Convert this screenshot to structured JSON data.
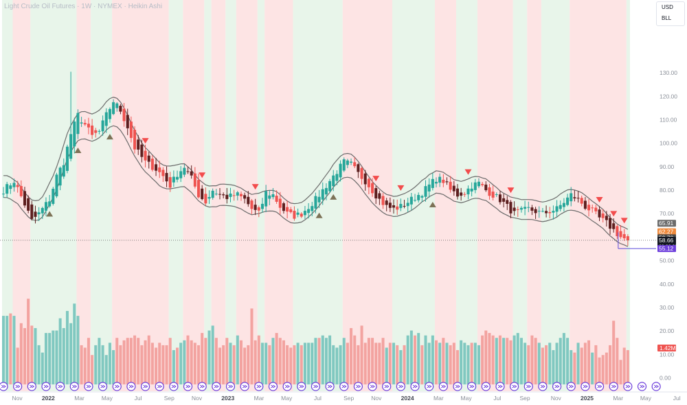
{
  "header": {
    "title": "Light Crude Oil Futures · 1W · NYMEX · Heikin Ashi"
  },
  "units": {
    "currency": "USD",
    "unit": "BLL"
  },
  "colors": {
    "up": "#26a69a",
    "down": "#ef5350",
    "dark_down": "#5d1f1f",
    "up_volume": "#80c8c0",
    "down_volume": "#f3a3a0",
    "band": "#6b6b6b",
    "bg_up": "#e8f5ea",
    "bg_down": "#fde4e4",
    "marker_up": "#7d7257",
    "marker_down": "#f24c4c",
    "line_purple": "#5b4bdb"
  },
  "price_labels": [
    {
      "text": "65.91",
      "value": 65.91,
      "bg": "#6b6b6b",
      "fg": "#ffffff"
    },
    {
      "text": "62.27",
      "value": 62.27,
      "bg": "#ef8a3c",
      "fg": "#ffffff"
    },
    {
      "text": "59.70",
      "value": 59.7,
      "bg": "#4a4a4a",
      "fg": "#ffffff"
    },
    {
      "text": "58.66",
      "value": 58.66,
      "bg": "#131722",
      "fg": "#ffffff",
      "sub": "09:00:09"
    },
    {
      "text": "55.12",
      "value": 55.12,
      "bg": "#6c3ddb",
      "fg": "#ffffff"
    }
  ],
  "volume_label": {
    "text": "1.42M",
    "bg": "#ef5350",
    "fg": "#ffffff"
  },
  "chart_data": {
    "type": "candlestick",
    "interval": "1W",
    "price_axis": {
      "ylim": [
        -2.8,
        140.6
      ],
      "ticks": [
        0,
        10,
        20,
        30,
        40,
        50,
        60,
        70,
        80,
        90,
        100,
        110,
        120,
        130
      ]
    },
    "price_tick_labels": [
      "0.00",
      "10.00",
      "20.00",
      "30.00",
      "40.00",
      "50.00",
      "60.00",
      "70.00",
      "80.00",
      "90.00",
      "100.00",
      "110.00",
      "120.00",
      "130.00"
    ],
    "x_axis": {
      "labels": [
        "Nov",
        "2022",
        "Mar",
        "May",
        "Jul",
        "Sep",
        "Nov",
        "2023",
        "Mar",
        "May",
        "Jul",
        "Sep",
        "Nov",
        "2024",
        "Mar",
        "May",
        "Jul",
        "Sep",
        "Nov",
        "2025",
        "Mar",
        "May",
        "Jul"
      ],
      "bold": [
        "2022",
        "2023",
        "2024",
        "2025"
      ]
    },
    "x_range_weeks": [
      0,
      183
    ],
    "last_candle_week": 176,
    "current_price": 58.66,
    "anchors": [
      [
        0,
        80
      ],
      [
        3,
        84
      ],
      [
        6,
        74
      ],
      [
        8,
        67
      ],
      [
        10,
        70
      ],
      [
        13,
        76
      ],
      [
        15,
        86
      ],
      [
        17,
        92
      ],
      [
        19,
        104
      ],
      [
        21,
        112
      ],
      [
        23,
        108
      ],
      [
        25,
        103
      ],
      [
        27,
        105
      ],
      [
        29,
        112
      ],
      [
        31,
        118
      ],
      [
        33,
        114
      ],
      [
        35,
        107
      ],
      [
        37,
        98
      ],
      [
        40,
        92
      ],
      [
        43,
        89
      ],
      [
        45,
        86
      ],
      [
        47,
        82
      ],
      [
        49,
        87
      ],
      [
        51,
        90
      ],
      [
        53,
        85
      ],
      [
        55,
        78
      ],
      [
        57,
        75
      ],
      [
        59,
        80
      ],
      [
        61,
        78
      ],
      [
        63,
        77
      ],
      [
        66,
        78
      ],
      [
        68,
        76
      ],
      [
        70,
        72
      ],
      [
        72,
        70
      ],
      [
        74,
        79
      ],
      [
        76,
        78
      ],
      [
        78,
        73
      ],
      [
        80,
        70
      ],
      [
        82,
        69
      ],
      [
        84,
        70
      ],
      [
        86,
        73
      ],
      [
        88,
        76
      ],
      [
        90,
        80
      ],
      [
        92,
        84
      ],
      [
        94,
        88
      ],
      [
        96,
        92
      ],
      [
        98,
        91
      ],
      [
        100,
        87
      ],
      [
        102,
        84
      ],
      [
        104,
        80
      ],
      [
        106,
        76
      ],
      [
        108,
        73
      ],
      [
        110,
        72
      ],
      [
        112,
        73
      ],
      [
        114,
        75
      ],
      [
        116,
        77
      ],
      [
        118,
        79
      ],
      [
        120,
        82
      ],
      [
        122,
        85
      ],
      [
        124,
        84
      ],
      [
        126,
        80
      ],
      [
        128,
        78
      ],
      [
        130,
        79
      ],
      [
        132,
        82
      ],
      [
        134,
        83
      ],
      [
        136,
        80
      ],
      [
        138,
        78
      ],
      [
        140,
        76
      ],
      [
        142,
        73
      ],
      [
        144,
        70
      ],
      [
        146,
        71
      ],
      [
        148,
        72
      ],
      [
        150,
        71
      ],
      [
        152,
        70
      ],
      [
        154,
        71
      ],
      [
        156,
        72
      ],
      [
        158,
        75
      ],
      [
        160,
        78
      ],
      [
        162,
        76
      ],
      [
        164,
        73
      ],
      [
        166,
        71
      ],
      [
        168,
        68
      ],
      [
        170,
        66
      ],
      [
        172,
        63
      ],
      [
        174,
        60
      ],
      [
        176,
        58.66
      ]
    ],
    "signals_up_weeks": [
      13,
      21,
      30,
      89,
      93,
      121
    ],
    "signals_down_weeks": [
      40,
      56,
      71,
      105,
      112,
      131,
      143,
      168,
      172,
      175
    ],
    "volume_axis_ylim": [
      0,
      37
    ],
    "volume_bars": [
      [
        0,
        28
      ],
      [
        1,
        28
      ],
      [
        2,
        29
      ],
      [
        3,
        28
      ],
      [
        4,
        15
      ],
      [
        5,
        25
      ],
      [
        6,
        23
      ],
      [
        7,
        35
      ],
      [
        8,
        24
      ],
      [
        9,
        23
      ],
      [
        10,
        16
      ],
      [
        11,
        13
      ],
      [
        12,
        21
      ],
      [
        13,
        21
      ],
      [
        14,
        22
      ],
      [
        15,
        22
      ],
      [
        16,
        27
      ],
      [
        17,
        23
      ],
      [
        18,
        30
      ],
      [
        19,
        25
      ],
      [
        20,
        33
      ],
      [
        21,
        28
      ],
      [
        22,
        16
      ],
      [
        23,
        15
      ],
      [
        24,
        19
      ],
      [
        25,
        12
      ],
      [
        26,
        16
      ],
      [
        27,
        19
      ],
      [
        28,
        16
      ],
      [
        29,
        12
      ],
      [
        30,
        17
      ],
      [
        31,
        14
      ],
      [
        32,
        19
      ],
      [
        33,
        16
      ],
      [
        34,
        18
      ],
      [
        35,
        19
      ],
      [
        36,
        19
      ],
      [
        37,
        20
      ],
      [
        38,
        19
      ],
      [
        39,
        16
      ],
      [
        40,
        18
      ],
      [
        41,
        20
      ],
      [
        42,
        17
      ],
      [
        43,
        15
      ],
      [
        44,
        17
      ],
      [
        45,
        16
      ],
      [
        46,
        16
      ],
      [
        47,
        19
      ],
      [
        48,
        14
      ],
      [
        49,
        15
      ],
      [
        50,
        17
      ],
      [
        51,
        18
      ],
      [
        52,
        20
      ],
      [
        53,
        18
      ],
      [
        54,
        17
      ],
      [
        55,
        16
      ],
      [
        56,
        21
      ],
      [
        57,
        19
      ],
      [
        58,
        22
      ],
      [
        59,
        24
      ],
      [
        60,
        19
      ],
      [
        61,
        15
      ],
      [
        62,
        16
      ],
      [
        63,
        19
      ],
      [
        64,
        17
      ],
      [
        65,
        16
      ],
      [
        66,
        20
      ],
      [
        67,
        18
      ],
      [
        68,
        15
      ],
      [
        69,
        16
      ],
      [
        70,
        31
      ],
      [
        71,
        18
      ],
      [
        72,
        20
      ],
      [
        73,
        17
      ],
      [
        74,
        17
      ],
      [
        75,
        16
      ],
      [
        76,
        19
      ],
      [
        77,
        21
      ],
      [
        78,
        19
      ],
      [
        79,
        18
      ],
      [
        80,
        16
      ],
      [
        81,
        15
      ],
      [
        82,
        16
      ],
      [
        83,
        17
      ],
      [
        84,
        16
      ],
      [
        85,
        17
      ],
      [
        86,
        17
      ],
      [
        87,
        17
      ],
      [
        88,
        19
      ],
      [
        89,
        19
      ],
      [
        90,
        20
      ],
      [
        91,
        19
      ],
      [
        92,
        20
      ],
      [
        93,
        16
      ],
      [
        94,
        15
      ],
      [
        95,
        16
      ],
      [
        96,
        19
      ],
      [
        97,
        17
      ],
      [
        98,
        23
      ],
      [
        99,
        20
      ],
      [
        100,
        16
      ],
      [
        101,
        24
      ],
      [
        102,
        17
      ],
      [
        103,
        19
      ],
      [
        104,
        19
      ],
      [
        105,
        17
      ],
      [
        106,
        17
      ],
      [
        107,
        19
      ],
      [
        108,
        15
      ],
      [
        109,
        17
      ],
      [
        110,
        17
      ],
      [
        111,
        16
      ],
      [
        112,
        14
      ],
      [
        113,
        16
      ],
      [
        114,
        20
      ],
      [
        115,
        22
      ],
      [
        116,
        20
      ],
      [
        117,
        21
      ],
      [
        118,
        16
      ],
      [
        119,
        20
      ],
      [
        120,
        17
      ],
      [
        121,
        20
      ],
      [
        122,
        18
      ],
      [
        123,
        17
      ],
      [
        124,
        19
      ],
      [
        125,
        17
      ],
      [
        126,
        16
      ],
      [
        127,
        17
      ],
      [
        128,
        14
      ],
      [
        129,
        18
      ],
      [
        130,
        17
      ],
      [
        131,
        16
      ],
      [
        132,
        17
      ],
      [
        133,
        17
      ],
      [
        134,
        16
      ],
      [
        135,
        20
      ],
      [
        136,
        22
      ],
      [
        137,
        21
      ],
      [
        138,
        20
      ],
      [
        139,
        19
      ],
      [
        140,
        20
      ],
      [
        141,
        19
      ],
      [
        142,
        19
      ],
      [
        143,
        18
      ],
      [
        144,
        20
      ],
      [
        145,
        21
      ],
      [
        146,
        19
      ],
      [
        147,
        17
      ],
      [
        148,
        16
      ],
      [
        149,
        20
      ],
      [
        150,
        19
      ],
      [
        151,
        17
      ],
      [
        152,
        15
      ],
      [
        153,
        16
      ],
      [
        154,
        17
      ],
      [
        155,
        14
      ],
      [
        156,
        17
      ],
      [
        157,
        19
      ],
      [
        158,
        21
      ],
      [
        159,
        19
      ],
      [
        160,
        14
      ],
      [
        161,
        13
      ],
      [
        162,
        17
      ],
      [
        163,
        15
      ],
      [
        164,
        17
      ],
      [
        165,
        18
      ],
      [
        166,
        13
      ],
      [
        167,
        16
      ],
      [
        168,
        11
      ],
      [
        169,
        12
      ],
      [
        170,
        13
      ],
      [
        171,
        16
      ],
      [
        172,
        26
      ],
      [
        173,
        19
      ],
      [
        174,
        10
      ],
      [
        175,
        15
      ],
      [
        176,
        14
      ]
    ]
  }
}
